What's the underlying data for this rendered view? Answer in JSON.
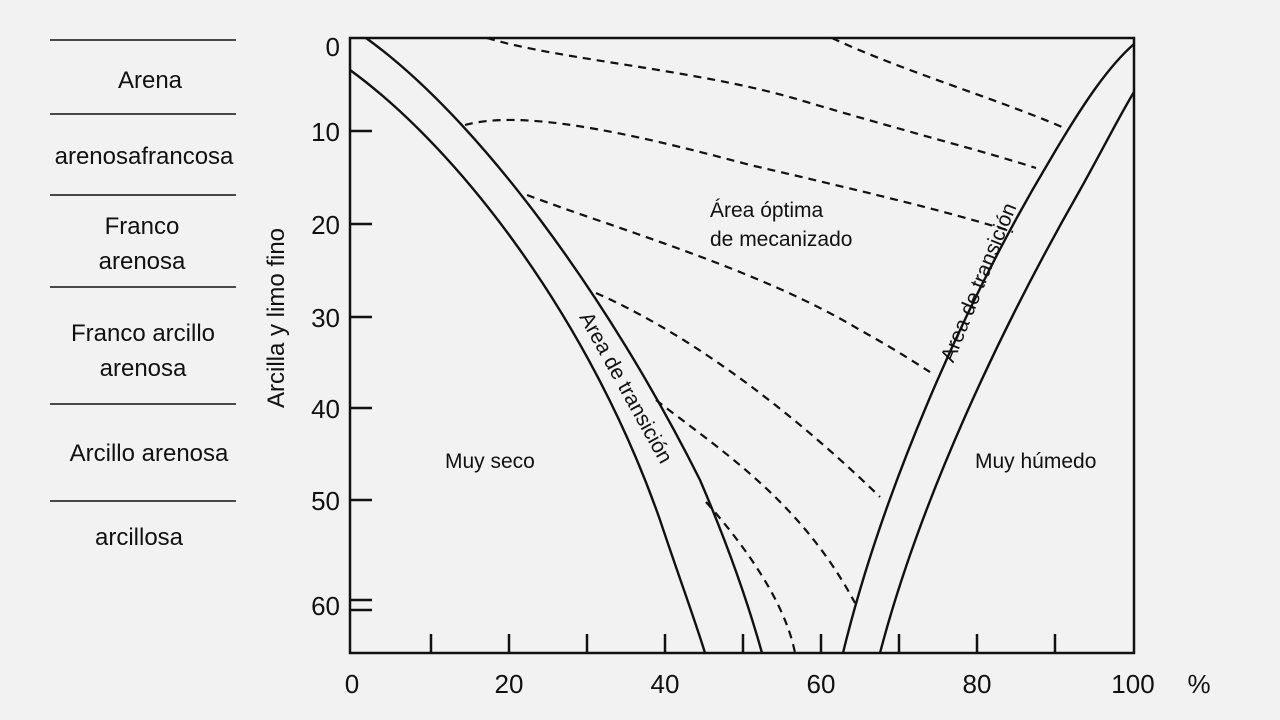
{
  "soil_classes": [
    {
      "lines": [
        "Arena"
      ]
    },
    {
      "lines": [
        "arenosafrancosa"
      ]
    },
    {
      "lines": [
        "Franco",
        "arenosa"
      ]
    },
    {
      "lines": [
        "Franco arcillo",
        "arenosa"
      ]
    },
    {
      "lines": [
        "Arcillo arenosa"
      ]
    },
    {
      "lines": [
        "arcillosa"
      ]
    }
  ],
  "axes": {
    "y_title": "Arcilla y limo fino",
    "x_unit": "%",
    "x_ticks": [
      "0",
      "20",
      "40",
      "60",
      "80",
      "100"
    ],
    "y_ticks": [
      "0",
      "10",
      "20",
      "30",
      "40",
      "50",
      "60"
    ]
  },
  "regions": {
    "dry": "Muy seco",
    "wet": "Muy húmedo",
    "optimal_line1": "Área óptima",
    "optimal_line2": "de mecanizado",
    "transition_left": "Area de transición",
    "transition_right": "Area de transición"
  },
  "colors": {
    "background": "#f2f2f2",
    "ink": "#111111"
  }
}
